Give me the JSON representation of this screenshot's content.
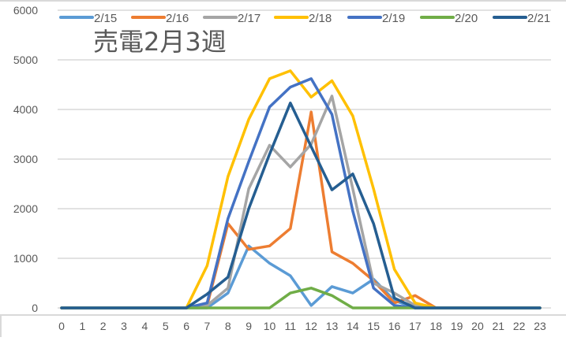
{
  "chart_data": {
    "type": "line",
    "title": "売電2月3週",
    "xlabel": "",
    "ylabel": "",
    "x": [
      0,
      1,
      2,
      3,
      4,
      5,
      6,
      7,
      8,
      9,
      10,
      11,
      12,
      13,
      14,
      15,
      16,
      17,
      18,
      19,
      20,
      21,
      22,
      23
    ],
    "ylim": [
      0,
      6000
    ],
    "yticks": [
      0,
      1000,
      2000,
      3000,
      4000,
      5000,
      6000
    ],
    "grid": true,
    "legend_position": "top",
    "series": [
      {
        "name": "2/15",
        "color": "#5B9BD5",
        "values": [
          0,
          0,
          0,
          0,
          0,
          0,
          0,
          0,
          300,
          1250,
          900,
          650,
          50,
          430,
          300,
          580,
          150,
          0,
          0,
          0,
          0,
          0,
          0,
          0
        ]
      },
      {
        "name": "2/16",
        "color": "#ED7D31",
        "values": [
          0,
          0,
          0,
          0,
          0,
          0,
          0,
          50,
          1700,
          1180,
          1250,
          1600,
          3950,
          1130,
          900,
          550,
          100,
          250,
          0,
          0,
          0,
          0,
          0,
          0
        ]
      },
      {
        "name": "2/17",
        "color": "#A5A5A5",
        "values": [
          0,
          0,
          0,
          0,
          0,
          0,
          0,
          50,
          400,
          2400,
          3280,
          2840,
          3300,
          4270,
          2400,
          500,
          300,
          50,
          0,
          0,
          0,
          0,
          0,
          0
        ]
      },
      {
        "name": "2/18",
        "color": "#FFC000",
        "values": [
          0,
          0,
          0,
          0,
          0,
          0,
          0,
          850,
          2650,
          3800,
          4620,
          4780,
          4250,
          4580,
          3870,
          2400,
          780,
          100,
          0,
          0,
          0,
          0,
          0,
          0
        ]
      },
      {
        "name": "2/19",
        "color": "#4472C4",
        "values": [
          0,
          0,
          0,
          0,
          0,
          0,
          0,
          100,
          1800,
          2950,
          4050,
          4450,
          4620,
          3900,
          1950,
          400,
          50,
          0,
          0,
          0,
          0,
          0,
          0,
          0
        ]
      },
      {
        "name": "2/20",
        "color": "#70AD47",
        "values": [
          0,
          0,
          0,
          0,
          0,
          0,
          0,
          0,
          0,
          0,
          0,
          300,
          400,
          250,
          0,
          0,
          0,
          0,
          0,
          0,
          0,
          0,
          0,
          0
        ]
      },
      {
        "name": "2/21",
        "color": "#255E91",
        "values": [
          0,
          0,
          0,
          0,
          0,
          0,
          0,
          280,
          620,
          2000,
          3100,
          4130,
          3250,
          2380,
          2700,
          1700,
          200,
          0,
          0,
          0,
          0,
          0,
          0,
          0
        ]
      }
    ]
  },
  "colors": {
    "grid": "#D9D9D9",
    "axis_text": "#595959",
    "frame": "#D9D9D9"
  }
}
